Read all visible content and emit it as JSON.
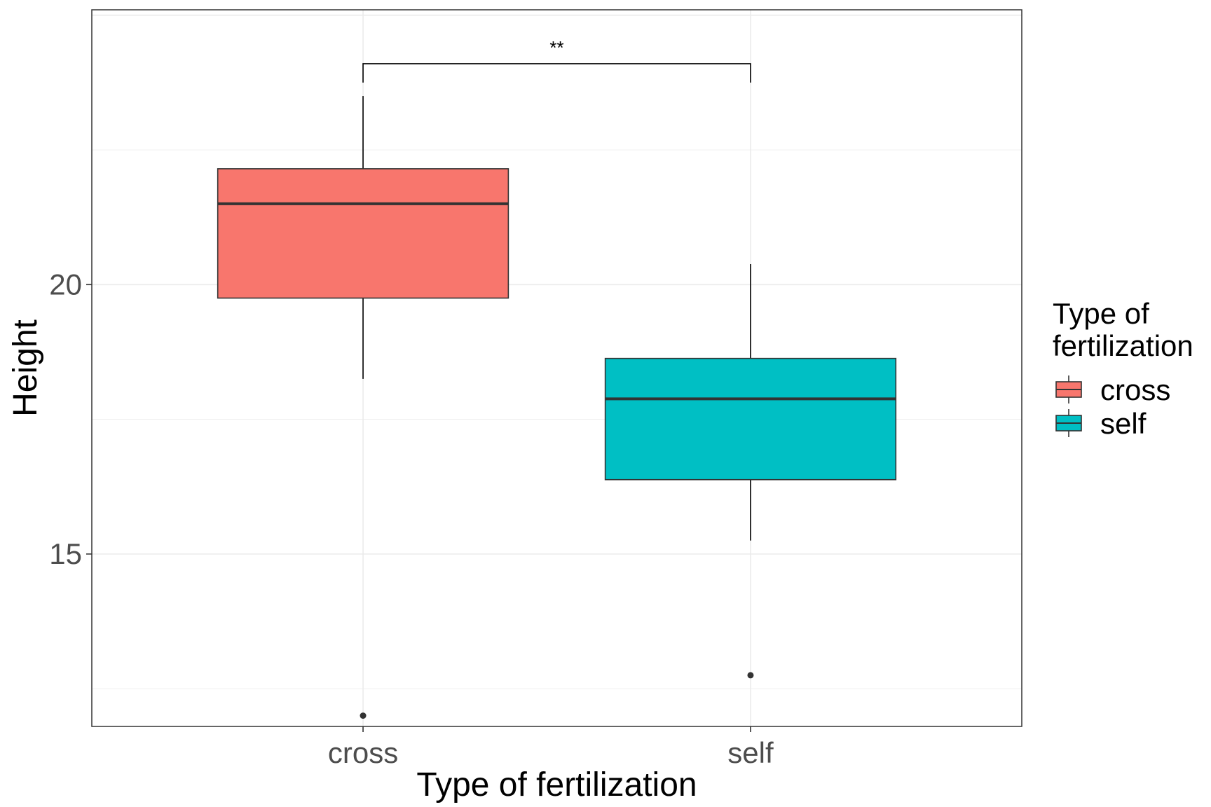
{
  "chart_data": {
    "type": "boxplot",
    "xlabel": "Type of fertilization",
    "ylabel": "Height",
    "categories": [
      "cross",
      "self"
    ],
    "ylim": [
      11.8,
      25.1
    ],
    "yticks": [
      15,
      20
    ],
    "ytick_labels": [
      "15",
      "20"
    ],
    "grid": true,
    "boxes": [
      {
        "category": "cross",
        "whisker_low": 18.25,
        "q1": 19.75,
        "median": 21.5,
        "q3": 22.15,
        "whisker_high": 23.5,
        "outliers": [
          12.0
        ],
        "color": "#F8766D"
      },
      {
        "category": "self",
        "whisker_low": 15.25,
        "q1": 16.38,
        "median": 17.88,
        "q3": 18.63,
        "whisker_high": 20.38,
        "outliers": [
          12.75
        ],
        "color": "#00BFC4"
      }
    ],
    "significance": {
      "from": "cross",
      "to": "self",
      "y": 24.1,
      "tick_bottom": 23.75,
      "label": "**"
    },
    "legend": {
      "title": [
        "Type of",
        "fertilization"
      ],
      "position": "right",
      "items": [
        {
          "label": "cross",
          "color": "#F8766D"
        },
        {
          "label": "self",
          "color": "#00BFC4"
        }
      ]
    }
  }
}
